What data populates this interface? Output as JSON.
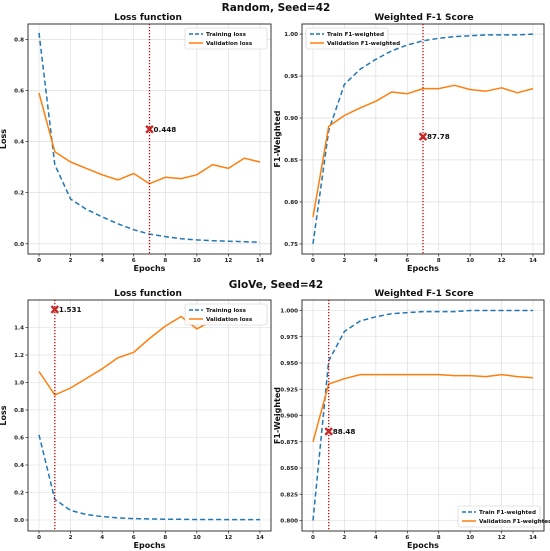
{
  "figure": {
    "row_titles": [
      "Random, Seed=42",
      "GloVe, Seed=42"
    ]
  },
  "colors": {
    "train": "#1f77b4",
    "val": "#ff7f0e",
    "marker": "#c62828",
    "vline": "#cc0000",
    "grid": "#d9d9d9"
  },
  "chart_data": [
    {
      "type": "line",
      "title": "Loss function",
      "xlabel": "Epochs",
      "ylabel": "Loss",
      "xlim": [
        -0.7,
        14.7
      ],
      "ylim": [
        -0.04,
        0.86
      ],
      "xticks": [
        0,
        2,
        4,
        6,
        8,
        10,
        12,
        14
      ],
      "yticks": [
        0.0,
        0.2,
        0.4,
        0.6,
        0.8
      ],
      "ytick_labels": [
        "0.0",
        "0.2",
        "0.4",
        "0.6",
        "0.8"
      ],
      "grid": true,
      "legend": "top-right",
      "series": [
        {
          "name": "Training loss",
          "role": "train",
          "x": [
            0,
            1,
            2,
            3,
            4,
            5,
            6,
            7,
            8,
            9,
            10,
            11,
            12,
            13,
            14
          ],
          "values": [
            0.825,
            0.31,
            0.175,
            0.135,
            0.105,
            0.078,
            0.055,
            0.038,
            0.028,
            0.02,
            0.015,
            0.012,
            0.01,
            0.008,
            0.006
          ]
        },
        {
          "name": "Validation loss",
          "role": "val",
          "x": [
            0,
            1,
            2,
            3,
            4,
            5,
            6,
            7,
            8,
            9,
            10,
            11,
            12,
            13,
            14
          ],
          "values": [
            0.59,
            0.36,
            0.32,
            0.295,
            0.27,
            0.25,
            0.275,
            0.235,
            0.26,
            0.255,
            0.27,
            0.31,
            0.295,
            0.335,
            0.32
          ]
        }
      ],
      "vline_x": 7,
      "marker": {
        "x": 7,
        "y": 0.448,
        "label": "0.448"
      }
    },
    {
      "type": "line",
      "title": "Weighted F-1 Score",
      "xlabel": "Epochs",
      "ylabel": "F1-Weighted",
      "xlim": [
        -0.7,
        14.7
      ],
      "ylim": [
        0.738,
        1.012
      ],
      "xticks": [
        0,
        2,
        4,
        6,
        8,
        10,
        12,
        14
      ],
      "yticks": [
        0.75,
        0.8,
        0.85,
        0.9,
        0.95,
        1.0
      ],
      "ytick_labels": [
        "0.75",
        "0.80",
        "0.85",
        "0.90",
        "0.95",
        "1.00"
      ],
      "grid": true,
      "legend": "top-left",
      "series": [
        {
          "name": "Train F1-weighted",
          "role": "train",
          "x": [
            0,
            1,
            2,
            3,
            4,
            5,
            6,
            7,
            8,
            9,
            10,
            11,
            12,
            13,
            14
          ],
          "values": [
            0.75,
            0.885,
            0.94,
            0.958,
            0.97,
            0.98,
            0.987,
            0.992,
            0.995,
            0.997,
            0.998,
            0.999,
            0.999,
            0.999,
            1.0
          ]
        },
        {
          "name": "Validation F1-weighted",
          "role": "val",
          "x": [
            0,
            1,
            2,
            3,
            4,
            5,
            6,
            7,
            8,
            9,
            10,
            11,
            12,
            13,
            14
          ],
          "values": [
            0.782,
            0.89,
            0.903,
            0.912,
            0.92,
            0.931,
            0.929,
            0.935,
            0.935,
            0.939,
            0.934,
            0.932,
            0.936,
            0.93,
            0.935
          ]
        }
      ],
      "vline_x": 7,
      "marker": {
        "x": 7,
        "y": 0.8778,
        "label": "87.78"
      }
    },
    {
      "type": "line",
      "title": "Loss function",
      "xlabel": "Epochs",
      "ylabel": "Loss",
      "xlim": [
        -0.7,
        14.7
      ],
      "ylim": [
        -0.08,
        1.6
      ],
      "xticks": [
        0,
        2,
        4,
        6,
        8,
        10,
        12,
        14
      ],
      "yticks": [
        0.0,
        0.2,
        0.4,
        0.6,
        0.8,
        1.0,
        1.2,
        1.4
      ],
      "ytick_labels": [
        "0.0",
        "0.2",
        "0.4",
        "0.6",
        "0.8",
        "1.0",
        "1.2",
        "1.4"
      ],
      "grid": true,
      "legend": "top-right",
      "series": [
        {
          "name": "Training loss",
          "role": "train",
          "x": [
            0,
            1,
            2,
            3,
            4,
            5,
            6,
            7,
            8,
            9,
            10,
            11,
            12,
            13,
            14
          ],
          "values": [
            0.62,
            0.15,
            0.07,
            0.04,
            0.025,
            0.015,
            0.01,
            0.008,
            0.006,
            0.005,
            0.004,
            0.004,
            0.003,
            0.003,
            0.003
          ]
        },
        {
          "name": "Validation loss",
          "role": "val",
          "x": [
            0,
            1,
            2,
            3,
            4,
            5,
            6,
            7,
            8,
            9,
            10,
            11,
            12,
            13,
            14
          ],
          "values": [
            1.08,
            0.91,
            0.96,
            1.03,
            1.1,
            1.18,
            1.22,
            1.32,
            1.41,
            1.48,
            1.39,
            1.45,
            1.45,
            null,
            null
          ]
        }
      ],
      "vline_x": 1,
      "marker": {
        "x": 1,
        "y": 1.531,
        "label": "1.531"
      }
    },
    {
      "type": "line",
      "title": "Weighted F-1 Score",
      "xlabel": "Epochs",
      "ylabel": "F1-Weighted",
      "xlim": [
        -0.7,
        14.7
      ],
      "ylim": [
        0.79,
        1.01
      ],
      "xticks": [
        0,
        2,
        4,
        6,
        8,
        10,
        12,
        14
      ],
      "yticks": [
        0.8,
        0.825,
        0.85,
        0.875,
        0.9,
        0.925,
        0.95,
        0.975,
        1.0
      ],
      "ytick_labels": [
        "0.800",
        "0.825",
        "0.850",
        "0.875",
        "0.900",
        "0.925",
        "0.950",
        "0.975",
        "1.000"
      ],
      "grid": true,
      "legend": "bottom-right",
      "series": [
        {
          "name": "Train F1-weighted",
          "role": "train",
          "x": [
            0,
            1,
            2,
            3,
            4,
            5,
            6,
            7,
            8,
            9,
            10,
            11,
            12,
            13,
            14
          ],
          "values": [
            0.8,
            0.952,
            0.98,
            0.99,
            0.994,
            0.997,
            0.998,
            0.999,
            0.999,
            0.999,
            1.0,
            1.0,
            1.0,
            1.0,
            1.0
          ]
        },
        {
          "name": "Validation F1-weighted",
          "role": "val",
          "x": [
            0,
            1,
            2,
            3,
            4,
            5,
            6,
            7,
            8,
            9,
            10,
            11,
            12,
            13,
            14
          ],
          "values": [
            0.875,
            0.93,
            0.935,
            0.939,
            0.939,
            0.939,
            0.939,
            0.939,
            0.939,
            0.938,
            0.938,
            0.937,
            0.939,
            0.937,
            0.936
          ]
        }
      ],
      "vline_x": 1,
      "marker": {
        "x": 1,
        "y": 0.8848,
        "label": "88.48"
      }
    }
  ]
}
